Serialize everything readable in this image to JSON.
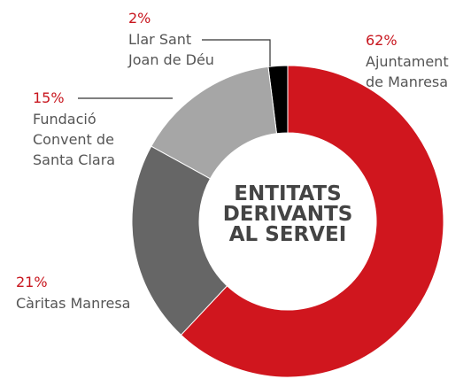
{
  "chart_data": {
    "type": "donut",
    "title": "ENTITATS\nDERIVANTS\nAL SERVEI",
    "categories": [
      "Ajuntament\nde Manresa",
      "Càritas Manresa",
      "Fundació\nConvent de\nSanta Clara",
      "Llar Sant\nJoan de Déu"
    ],
    "values": [
      62,
      21,
      15,
      2
    ],
    "value_labels": [
      "62%",
      "21%",
      "15%",
      "2%"
    ],
    "colors": [
      "#d0161e",
      "#666666",
      "#a6a6a6",
      "#000000"
    ]
  }
}
